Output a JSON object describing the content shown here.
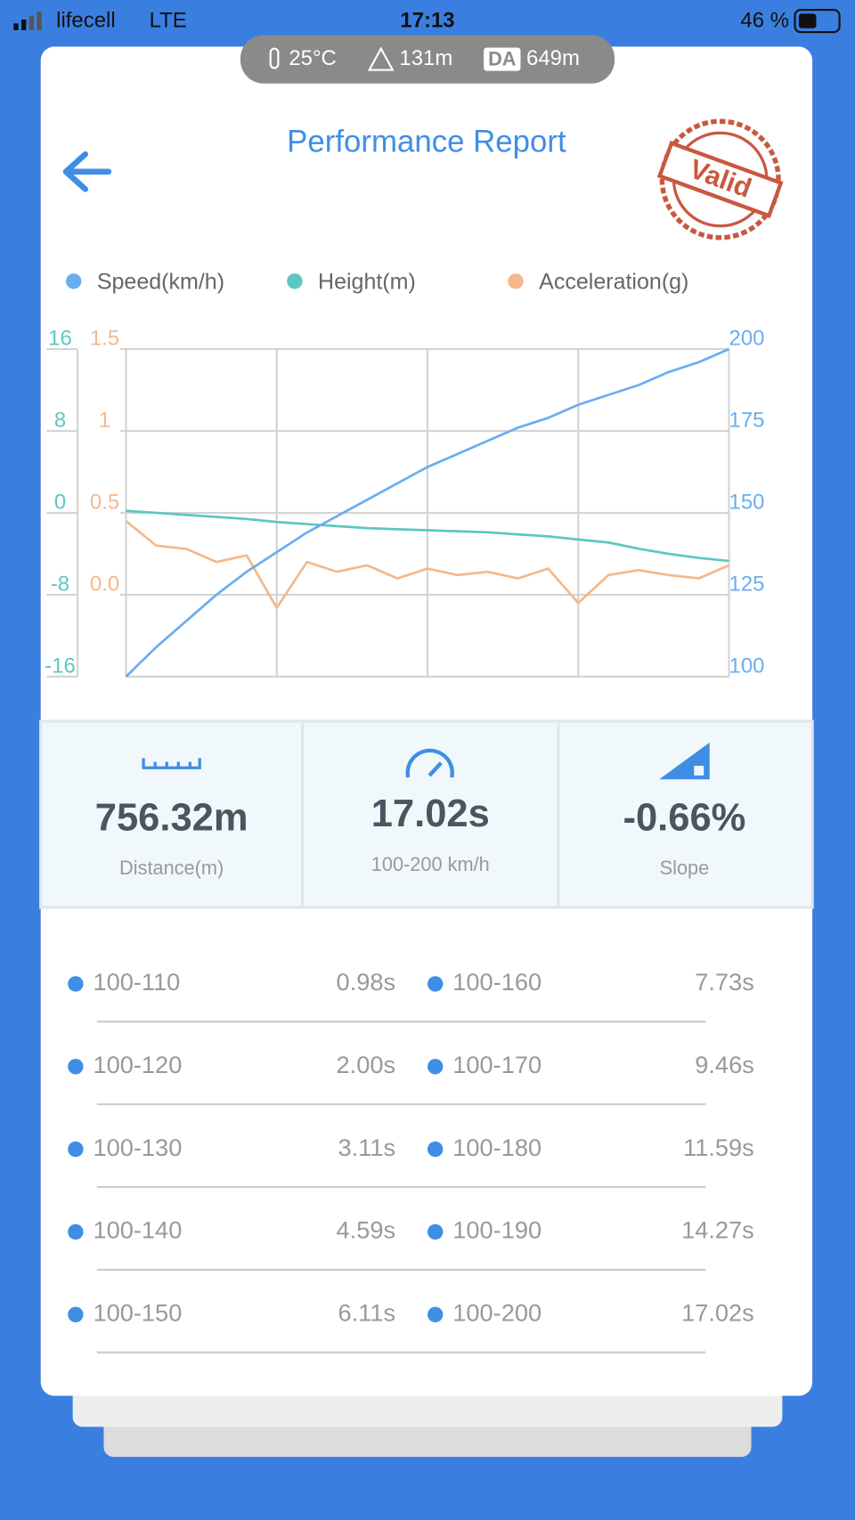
{
  "status_bar": {
    "carrier": "lifecell",
    "network": "LTE",
    "time": "17:13",
    "battery": "46 %"
  },
  "conditions": {
    "temperature": "25°C",
    "altitude": "131m",
    "da_label": "DA",
    "density_altitude": "649m"
  },
  "header": {
    "title": "Performance Report",
    "stamp": "Valid"
  },
  "chart_data": {
    "type": "line",
    "series": [
      {
        "name": "Speed(km/h)",
        "color": "#6aaef0",
        "axis": "y3",
        "values": [
          100,
          109,
          117,
          125,
          132,
          138,
          144,
          149,
          154,
          159,
          164,
          168,
          172,
          176,
          179,
          183,
          186,
          189,
          193,
          196,
          200
        ]
      },
      {
        "name": "Height(m)",
        "color": "#5cc8c0",
        "axis": "y2",
        "values": [
          0.2,
          0,
          -0.2,
          -0.4,
          -0.6,
          -0.9,
          -1.1,
          -1.3,
          -1.5,
          -1.6,
          -1.7,
          -1.8,
          -1.9,
          -2.1,
          -2.3,
          -2.6,
          -2.9,
          -3.5,
          -4.0,
          -4.4,
          -4.7
        ]
      },
      {
        "name": "Acceleration(g)",
        "color": "#f5b88a",
        "axis": "y",
        "values": [
          0.45,
          0.3,
          0.28,
          0.2,
          0.24,
          -0.08,
          0.2,
          0.14,
          0.18,
          0.1,
          0.16,
          0.12,
          0.14,
          0.1,
          0.16,
          -0.05,
          0.12,
          0.15,
          0.12,
          0.1,
          0.18
        ]
      }
    ],
    "ylim": [
      -0.5,
      1.5
    ],
    "yticks": [
      {
        "value": 0,
        "label": "0.0"
      },
      0.5,
      1,
      1.5
    ],
    "y2lim": [
      -16,
      16
    ],
    "y2ticks": [
      -16,
      -8,
      0,
      8,
      16
    ],
    "y3lim": [
      100,
      200
    ],
    "y3ticks": [
      100,
      125,
      150,
      175,
      200
    ],
    "grid": true
  },
  "stats": [
    {
      "value": "756.32m",
      "label": "Distance(m)"
    },
    {
      "value": "17.02s",
      "label": "100-200 km/h"
    },
    {
      "value": "-0.66%",
      "label": "Slope"
    }
  ],
  "splits": [
    {
      "range": "100-110",
      "time": "0.98s"
    },
    {
      "range": "100-160",
      "time": "7.73s"
    },
    {
      "range": "100-120",
      "time": "2.00s"
    },
    {
      "range": "100-170",
      "time": "9.46s"
    },
    {
      "range": "100-130",
      "time": "3.11s"
    },
    {
      "range": "100-180",
      "time": "11.59s"
    },
    {
      "range": "100-140",
      "time": "4.59s"
    },
    {
      "range": "100-190",
      "time": "14.27s"
    },
    {
      "range": "100-150",
      "time": "6.11s"
    },
    {
      "range": "100-200",
      "time": "17.02s"
    }
  ]
}
